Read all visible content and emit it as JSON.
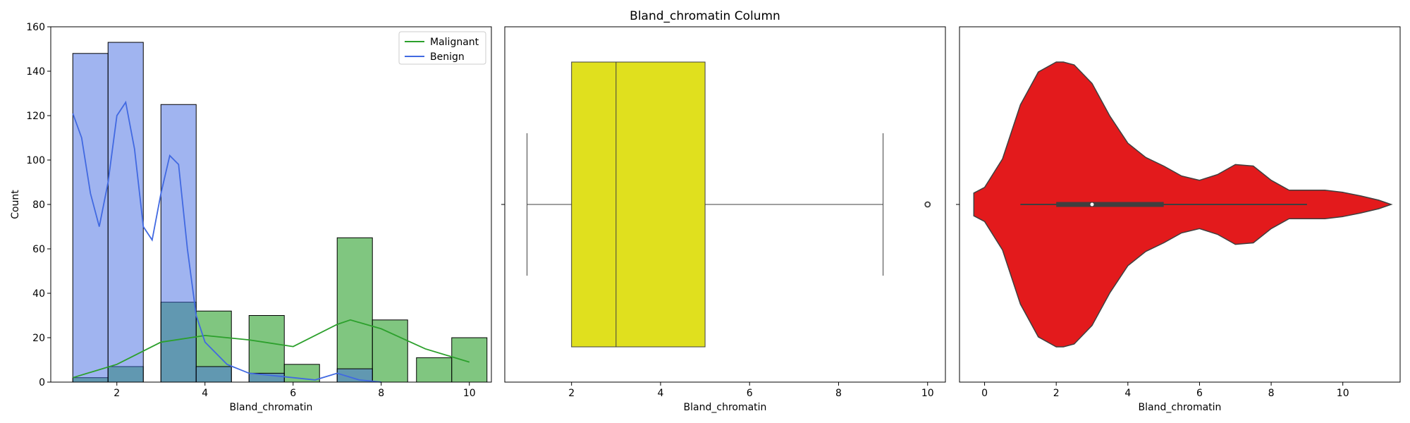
{
  "figure": {
    "title": "Bland_chromatin Column"
  },
  "chart_data": [
    {
      "type": "histogram",
      "xlabel": "Bland_chromatin",
      "ylabel": "Count",
      "xlim": [
        0.5,
        10.5
      ],
      "ylim": [
        0,
        160
      ],
      "xticks": [
        2,
        4,
        6,
        8,
        10
      ],
      "yticks": [
        0,
        20,
        40,
        60,
        80,
        100,
        120,
        140,
        160
      ],
      "bin_edges": [
        1.0,
        1.8,
        2.6,
        3.4,
        4.2,
        5.0,
        5.8,
        6.6,
        7.4,
        8.2,
        9.0,
        9.8
      ],
      "series": [
        {
          "name": "Malignant",
          "color": "#2ca02c",
          "counts": [
            2,
            7,
            0,
            36,
            32,
            30,
            8,
            0,
            65,
            28,
            0,
            11,
            20
          ],
          "bins": [
            [
              1.0,
              1.8
            ],
            [
              1.8,
              2.6
            ],
            [
              2.6,
              3.0
            ],
            [
              3.0,
              3.8
            ],
            [
              3.8,
              4.6
            ],
            [
              5.0,
              5.8
            ],
            [
              5.8,
              6.6
            ],
            [
              6.6,
              7.0
            ],
            [
              7.0,
              7.8
            ],
            [
              7.8,
              8.6
            ],
            [
              8.6,
              8.8
            ],
            [
              8.8,
              9.6
            ],
            [
              9.6,
              10.4
            ]
          ],
          "kde": {
            "x": [
              1.0,
              2.0,
              3.0,
              4.0,
              5.0,
              6.0,
              7.0,
              7.3,
              8.0,
              9.0,
              10.0
            ],
            "y": [
              2,
              8,
              18,
              21,
              19,
              16,
              26,
              28,
              24,
              15,
              9
            ]
          }
        },
        {
          "name": "Benign",
          "color": "#4169e1",
          "counts": [
            148,
            153,
            125,
            7,
            4,
            0,
            6
          ],
          "bins": [
            [
              1.0,
              1.8
            ],
            [
              1.8,
              2.6
            ],
            [
              3.0,
              3.8
            ],
            [
              3.8,
              4.6
            ],
            [
              5.0,
              5.8
            ],
            [
              5.8,
              6.6
            ],
            [
              7.0,
              7.8
            ]
          ],
          "kde": {
            "x": [
              1.0,
              1.2,
              1.4,
              1.6,
              1.8,
              2.0,
              2.2,
              2.4,
              2.6,
              2.8,
              3.0,
              3.2,
              3.4,
              3.6,
              3.8,
              4.0,
              4.5,
              5.0,
              5.5,
              6.0,
              6.5,
              7.0,
              7.5,
              8.0
            ],
            "y": [
              121,
              110,
              85,
              70,
              90,
              120,
              126,
              105,
              70,
              64,
              85,
              102,
              98,
              60,
              30,
              18,
              8,
              4,
              3,
              2,
              1,
              4,
              1,
              0
            ]
          }
        }
      ],
      "legend": {
        "placement": "top-right",
        "entries": [
          "Malignant",
          "Benign"
        ]
      }
    },
    {
      "type": "boxplot",
      "xlabel": "Bland_chromatin",
      "xlim": [
        0.5,
        10.4
      ],
      "xticks": [
        2,
        4,
        6,
        8,
        10
      ],
      "color": "#e0e01e",
      "stats": {
        "whisker_low": 1,
        "q1": 2,
        "median": 3,
        "q3": 5,
        "whisker_high": 9
      },
      "outliers": [
        10
      ]
    },
    {
      "type": "violin",
      "xlabel": "Bland_chromatin",
      "xlim": [
        -0.7,
        11.6
      ],
      "xticks": [
        0,
        2,
        4,
        6,
        8,
        10
      ],
      "color": "#e31a1c",
      "density": {
        "x": [
          -0.3,
          0,
          0.5,
          1.0,
          1.5,
          2.0,
          2.2,
          2.5,
          3.0,
          3.5,
          4.0,
          4.5,
          5.0,
          5.5,
          6.0,
          6.5,
          7.0,
          7.5,
          8.0,
          8.5,
          9.0,
          9.5,
          10.0,
          10.5,
          11.0,
          11.35
        ],
        "y": [
          0.08,
          0.12,
          0.32,
          0.7,
          0.93,
          1.0,
          1.0,
          0.98,
          0.85,
          0.62,
          0.43,
          0.33,
          0.27,
          0.2,
          0.17,
          0.21,
          0.28,
          0.27,
          0.17,
          0.1,
          0.1,
          0.1,
          0.085,
          0.06,
          0.03,
          0.0
        ]
      },
      "quartiles": {
        "whisker_low": 1,
        "q1": 2,
        "median": 3,
        "q3": 5,
        "whisker_high": 9
      }
    }
  ]
}
